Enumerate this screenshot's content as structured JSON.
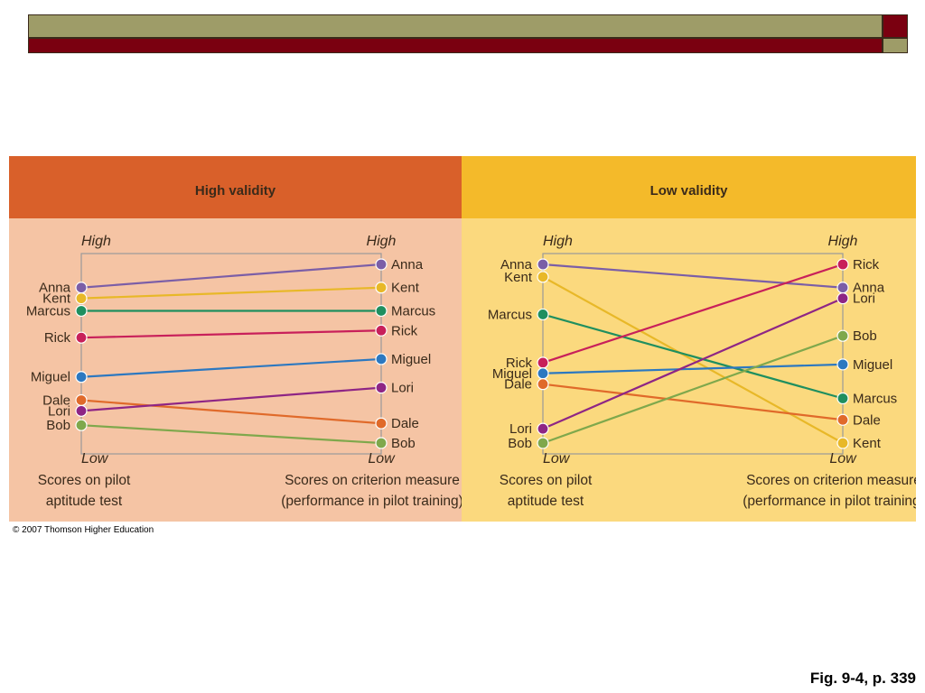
{
  "colors": {
    "high_header": "#d9602a",
    "high_body": "#f5c4a4",
    "low_header": "#f4ba2a",
    "low_body": "#fbd97e",
    "frame": "#9a9a9a",
    "names": {
      "Anna": "#7b5ea7",
      "Kent": "#e8b828",
      "Marcus": "#1f8f5f",
      "Rick": "#c8205a",
      "Miguel": "#2c78c0",
      "Dale": "#e06a2a",
      "Lori": "#8e2585",
      "Bob": "#7fa84c"
    }
  },
  "panels": [
    {
      "id": "high",
      "title": "High validity",
      "left_high": "High",
      "left_low": "Low",
      "right_high": "High",
      "right_low": "Low",
      "left_caption": [
        "Scores on pilot",
        "aptitude test"
      ],
      "right_caption": [
        "Scores on criterion measure",
        "(performance in pilot training)"
      ],
      "people": [
        {
          "name": "Anna",
          "left": 0.87,
          "right": 1.0
        },
        {
          "name": "Kent",
          "left": 0.81,
          "right": 0.87
        },
        {
          "name": "Marcus",
          "left": 0.74,
          "right": 0.74
        },
        {
          "name": "Rick",
          "left": 0.59,
          "right": 0.63
        },
        {
          "name": "Miguel",
          "left": 0.37,
          "right": 0.47
        },
        {
          "name": "Dale",
          "left": 0.24,
          "right": 0.11
        },
        {
          "name": "Lori",
          "left": 0.18,
          "right": 0.31
        },
        {
          "name": "Bob",
          "left": 0.1,
          "right": 0.0
        }
      ]
    },
    {
      "id": "low",
      "title": "Low validity",
      "left_high": "High",
      "left_low": "Low",
      "right_high": "High",
      "right_low": "Low",
      "left_caption": [
        "Scores on pilot",
        "aptitude test"
      ],
      "right_caption": [
        "Scores on criterion measure",
        "(performance in pilot training)"
      ],
      "people": [
        {
          "name": "Anna",
          "left": 1.0,
          "right": 0.87
        },
        {
          "name": "Kent",
          "left": 0.93,
          "right": 0.0
        },
        {
          "name": "Marcus",
          "left": 0.72,
          "right": 0.25
        },
        {
          "name": "Rick",
          "left": 0.45,
          "right": 1.0
        },
        {
          "name": "Miguel",
          "left": 0.39,
          "right": 0.44
        },
        {
          "name": "Dale",
          "left": 0.33,
          "right": 0.13
        },
        {
          "name": "Lori",
          "left": 0.08,
          "right": 0.81
        },
        {
          "name": "Bob",
          "left": 0.0,
          "right": 0.6
        }
      ]
    }
  ],
  "copyright": "© 2007 Thomson Higher Education",
  "caption": "Fig. 9-4, p. 339"
}
